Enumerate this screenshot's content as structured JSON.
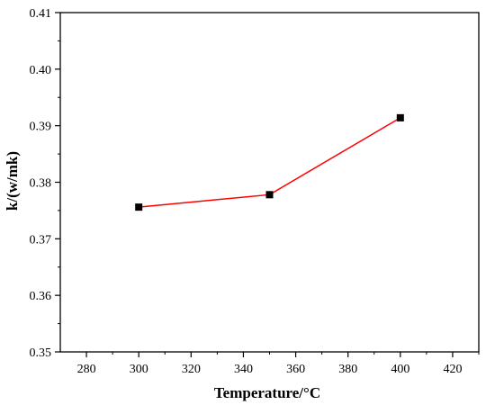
{
  "chart_data": {
    "type": "line",
    "title": "",
    "xlabel": "Temperature/°C",
    "ylabel": "k/(w/mk)",
    "xlim": [
      270,
      430
    ],
    "ylim": [
      0.35,
      0.41
    ],
    "x_ticks": [
      280,
      300,
      320,
      340,
      360,
      380,
      400,
      420
    ],
    "x_tick_labels": [
      "280",
      "300",
      "320",
      "340",
      "360",
      "380",
      "400",
      "420"
    ],
    "y_ticks": [
      0.35,
      0.36,
      0.37,
      0.38,
      0.39,
      0.4,
      0.41
    ],
    "y_tick_labels": [
      "0.35",
      "0.36",
      "0.37",
      "0.38",
      "0.39",
      "0.40",
      "0.41"
    ],
    "grid": false,
    "legend": "none",
    "series": [
      {
        "x": [
          300,
          350,
          400
        ],
        "y": [
          0.3756,
          0.3778,
          0.3914
        ],
        "line_color": "#ff0000",
        "marker": "square",
        "marker_color": "#000000"
      }
    ]
  }
}
